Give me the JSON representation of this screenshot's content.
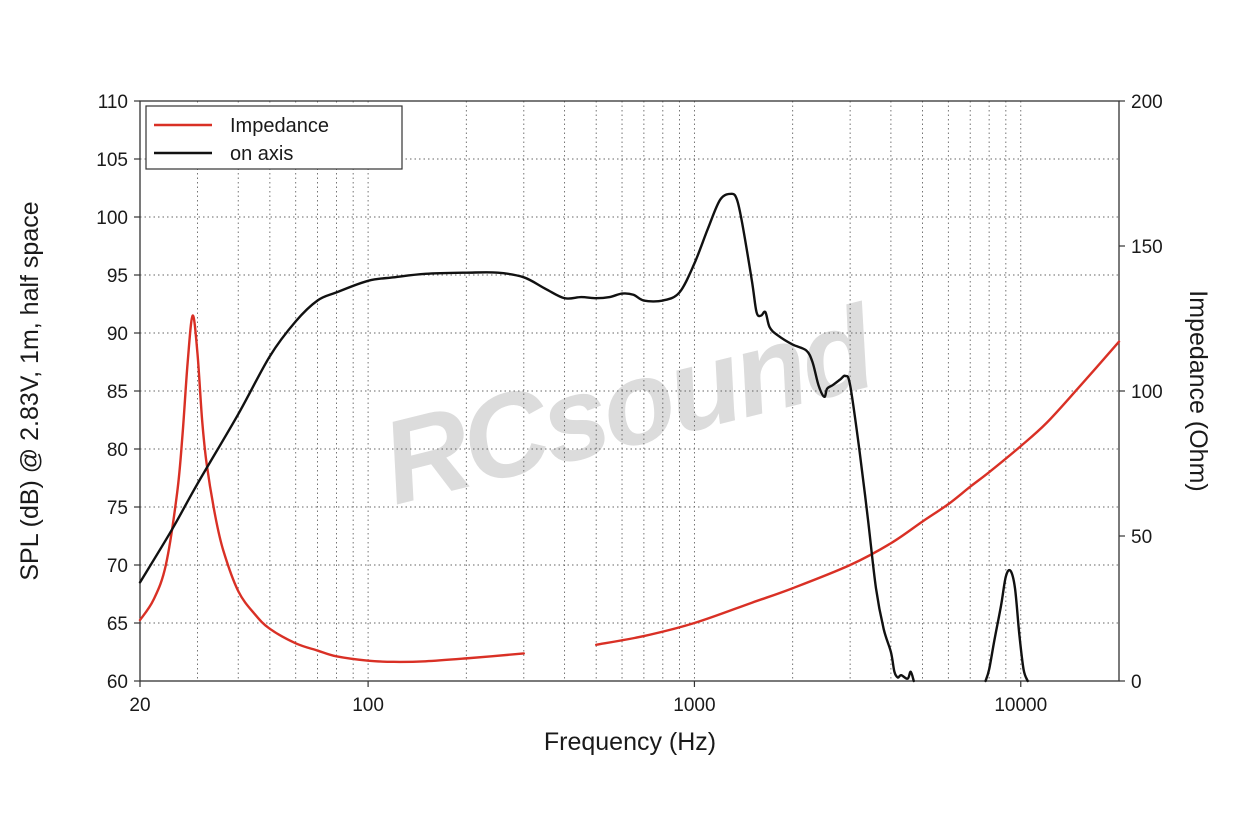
{
  "chart_data": {
    "type": "line",
    "xlabel": "Frequency (Hz)",
    "ylabel": "SPL (dB) @ 2.83V, 1m, half space",
    "y2label": "Impedance (Ohm)",
    "xscale": "log",
    "xlim": [
      20,
      20000
    ],
    "ylim": [
      60,
      110
    ],
    "y2lim": [
      0,
      200
    ],
    "x_ticks": [
      20,
      100,
      1000,
      10000
    ],
    "x_tick_labels": [
      "20",
      "100",
      "1000",
      "10000"
    ],
    "y_ticks": [
      60,
      65,
      70,
      75,
      80,
      85,
      90,
      95,
      100,
      105,
      110
    ],
    "y_tick_labels": [
      "60",
      "65",
      "70",
      "75",
      "80",
      "85",
      "90",
      "95",
      "100",
      "105",
      "110"
    ],
    "y2_ticks": [
      0,
      50,
      100,
      150,
      200
    ],
    "y2_tick_labels": [
      "0",
      "50",
      "100",
      "150",
      "200"
    ],
    "grid": true,
    "legend_position": "top-left",
    "watermark": "RCsound",
    "series": [
      {
        "name": "Impedance",
        "axis": "right",
        "color": "#d93025",
        "x": [
          20,
          22,
          24,
          26,
          27,
          28,
          29,
          30,
          31,
          32,
          34,
          36,
          40,
          45,
          50,
          60,
          70,
          80,
          100,
          120,
          150,
          200,
          300,
          500,
          700,
          1000,
          1500,
          2000,
          3000,
          4000,
          5000,
          6000,
          7000,
          8000,
          10000,
          12000,
          15000,
          20000
        ],
        "y": [
          21,
          28,
          40,
          65,
          85,
          110,
          126,
          113,
          90,
          75,
          57,
          45,
          31,
          23,
          18,
          13,
          10.5,
          8.5,
          7,
          6.6,
          6.8,
          7.8,
          9.5,
          12.5,
          15.5,
          20,
          27,
          32,
          40,
          47.5,
          55,
          61,
          67,
          72,
          81,
          89,
          101,
          117
        ]
      },
      {
        "name": "on axis",
        "axis": "left",
        "color": "#111111",
        "x": [
          20,
          25,
          30,
          40,
          50,
          60,
          70,
          80,
          100,
          120,
          150,
          200,
          250,
          300,
          350,
          400,
          450,
          500,
          550,
          600,
          650,
          700,
          800,
          900,
          1000,
          1100,
          1200,
          1300,
          1350,
          1400,
          1500,
          1550,
          1600,
          1650,
          1700,
          1800,
          2000,
          2200,
          2300,
          2400,
          2500,
          2550,
          2650,
          2800,
          2900,
          3000,
          3200,
          3400,
          3600,
          3800,
          4000,
          4100,
          4200,
          4300,
          4500,
          4600,
          4700,
          7800,
          8000,
          8300,
          8700,
          9000,
          9300,
          9600,
          9900,
          10200,
          10500
        ],
        "y": [
          68.5,
          73,
          77,
          83,
          88,
          91,
          92.8,
          93.5,
          94.5,
          94.8,
          95.1,
          95.2,
          95.2,
          94.8,
          93.8,
          93,
          93.1,
          93,
          93.1,
          93.4,
          93.3,
          92.8,
          92.8,
          93.5,
          96,
          99,
          101.5,
          102,
          101.5,
          99.5,
          94.5,
          91.8,
          91.5,
          91.8,
          90.5,
          89.8,
          89,
          88.5,
          87.5,
          85.5,
          84.5,
          85.2,
          85.5,
          86,
          86.3,
          85.5,
          80,
          74,
          68,
          64.5,
          62.5,
          60.8,
          60.3,
          60.5,
          60.2,
          60.8,
          60,
          60,
          61,
          63.5,
          66.5,
          69,
          69.5,
          68,
          64,
          61,
          60
        ]
      }
    ]
  }
}
